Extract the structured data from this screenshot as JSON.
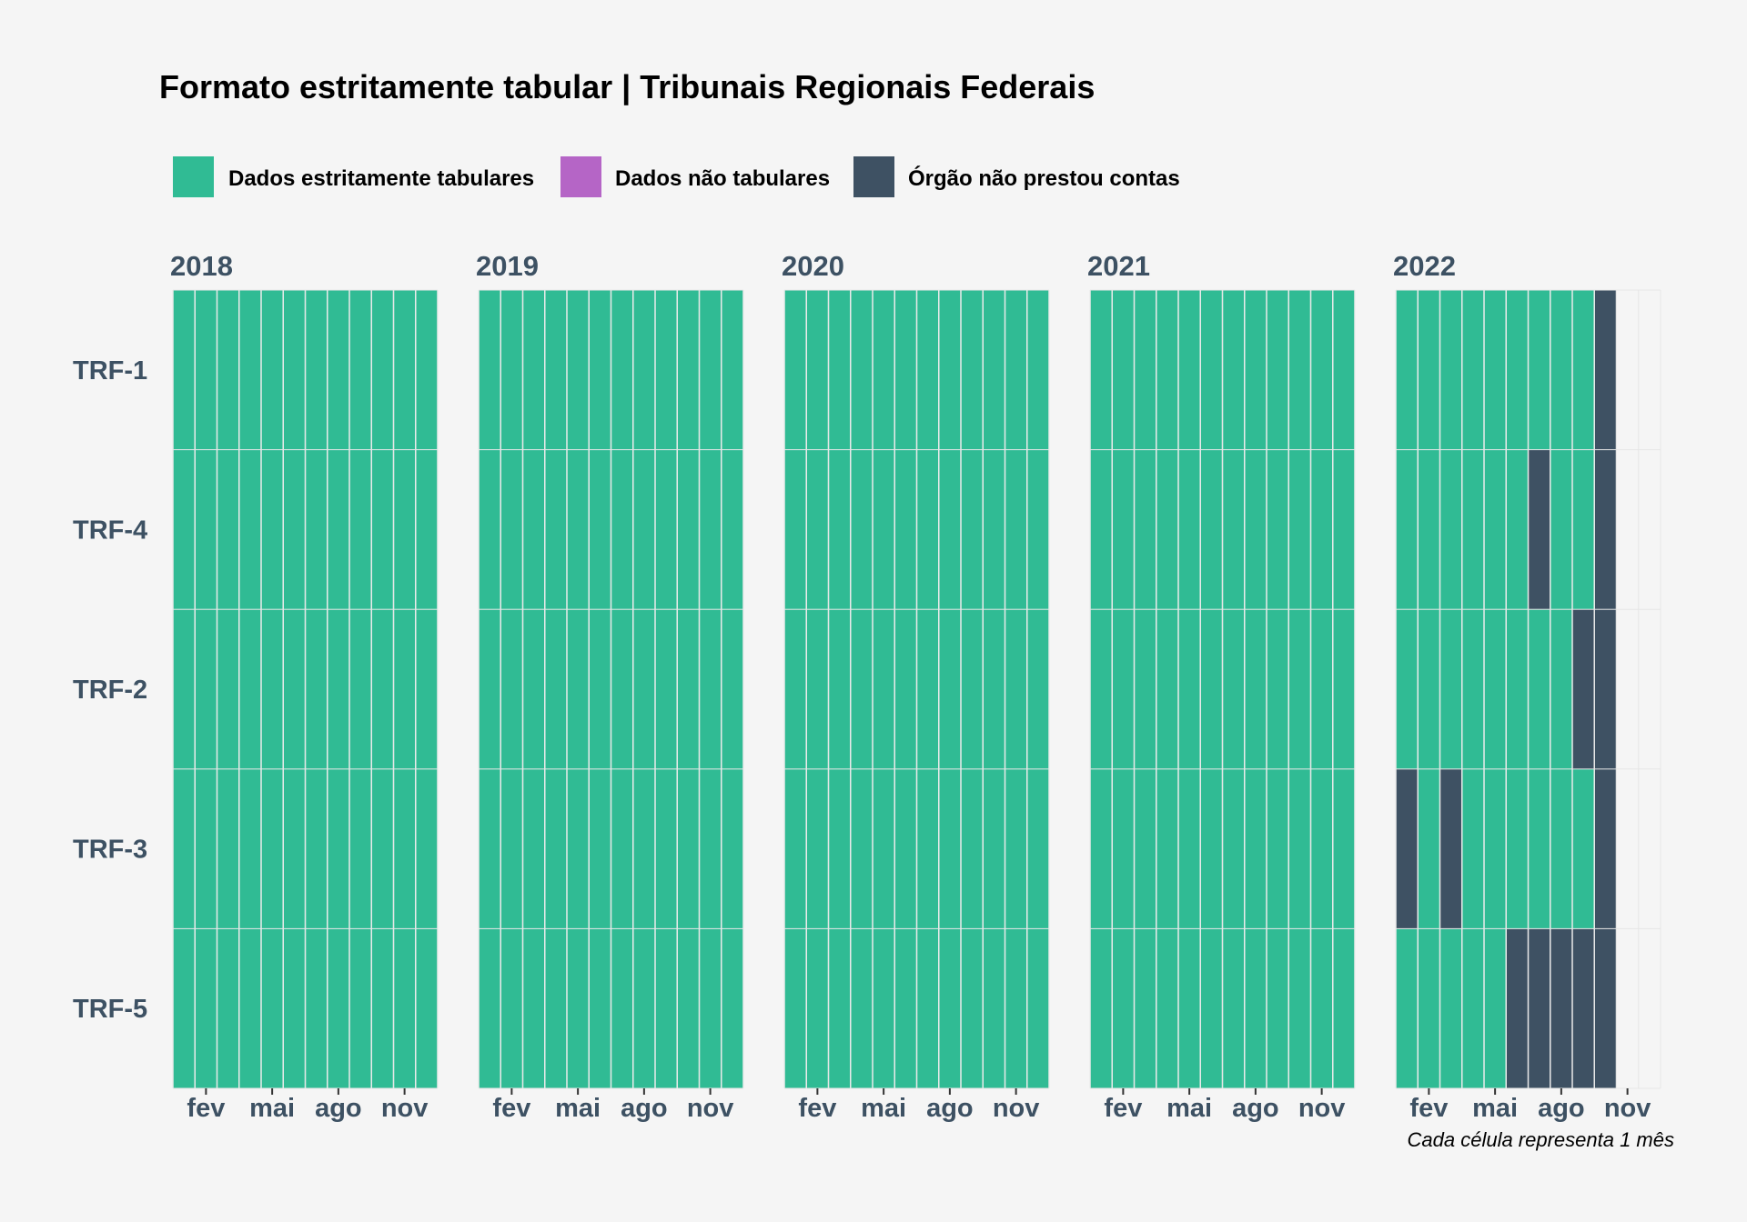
{
  "colors": {
    "background": "#f5f5f5",
    "grid": "#e6e6e6",
    "text_axis": "#3d5163"
  },
  "chart_data": {
    "type": "heatmap",
    "title": "Formato estritamente tabular | Tribunais Regionais Federais",
    "caption": "Cada célula representa 1 mês",
    "legend_position": "top-left",
    "legend": [
      {
        "key": "T",
        "label": "Dados estritamente tabulares",
        "color": "#30bb94"
      },
      {
        "key": "N",
        "label": "Dados não tabulares",
        "color": "#b565c6"
      },
      {
        "key": "X",
        "label": "Órgão não prestou contas",
        "color": "#3e5163"
      }
    ],
    "rows": [
      "TRF-1",
      "TRF-4",
      "TRF-2",
      "TRF-3",
      "TRF-5"
    ],
    "x_tick_labels": [
      {
        "month": 2,
        "label": "fev"
      },
      {
        "month": 5,
        "label": "mai"
      },
      {
        "month": 8,
        "label": "ago"
      },
      {
        "month": 11,
        "label": "nov"
      }
    ],
    "panels": [
      {
        "year": "2018",
        "cells": [
          "TTTTTTTTTTTT",
          "TTTTTTTTTTTT",
          "TTTTTTTTTTTT",
          "TTTTTTTTTTTT",
          "TTTTTTTTTTTT"
        ]
      },
      {
        "year": "2019",
        "cells": [
          "TTTTTTTTTTTT",
          "TTTTTTTTTTTT",
          "TTTTTTTTTTTT",
          "TTTTTTTTTTTT",
          "TTTTTTTTTTTT"
        ]
      },
      {
        "year": "2020",
        "cells": [
          "TTTTTTTTTTTT",
          "TTTTTTTTTTTT",
          "TTTTTTTTTTTT",
          "TTTTTTTTTTTT",
          "TTTTTTTTTTTT"
        ]
      },
      {
        "year": "2021",
        "cells": [
          "TTTTTTTTTTTT",
          "TTTTTTTTTTTT",
          "TTTTTTTTTTTT",
          "TTTTTTTTTTTT",
          "TTTTTTTTTTTT"
        ]
      },
      {
        "year": "2022",
        "cells": [
          "TTTTTTTTTX..",
          "TTTTTTXTTX..",
          "TTTTTTTTXX..",
          "XTXTTTTTTX..",
          "TTTTTXXXXX.."
        ]
      }
    ]
  }
}
